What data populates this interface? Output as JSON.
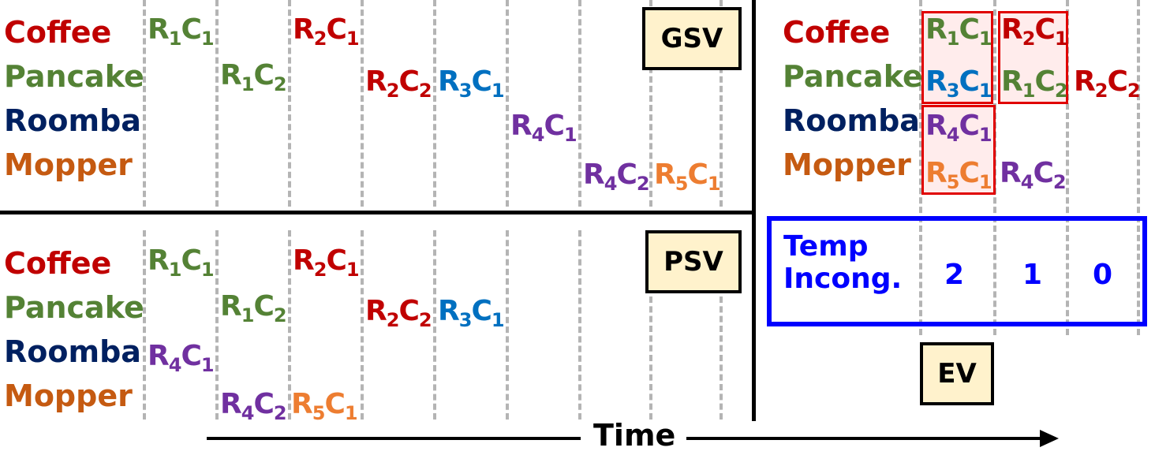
{
  "rows": {
    "coffee": "Coffee",
    "pancake": "Pancake",
    "roomba": "Roomba",
    "mopper": "Mopper"
  },
  "tags": {
    "gsv": "GSV",
    "psv": "PSV",
    "ev": "EV"
  },
  "tokens": {
    "r1c1": {
      "r": "R",
      "rs": "1",
      "c": "C",
      "cs": "1"
    },
    "r1c2": {
      "r": "R",
      "rs": "1",
      "c": "C",
      "cs": "2"
    },
    "r2c1": {
      "r": "R",
      "rs": "2",
      "c": "C",
      "cs": "1"
    },
    "r2c2": {
      "r": "R",
      "rs": "2",
      "c": "C",
      "cs": "2"
    },
    "r3c1": {
      "r": "R",
      "rs": "3",
      "c": "C",
      "cs": "1"
    },
    "r4c1": {
      "r": "R",
      "rs": "4",
      "c": "C",
      "cs": "1"
    },
    "r4c2": {
      "r": "R",
      "rs": "4",
      "c": "C",
      "cs": "2"
    },
    "r5c1": {
      "r": "R",
      "rs": "5",
      "c": "C",
      "cs": "1"
    }
  },
  "temp_incong": {
    "label_line1": "Temp",
    "label_line2": "Incong.",
    "values": [
      "2",
      "1",
      "0"
    ]
  },
  "time_label": "Time",
  "colors": {
    "coffee": "#c00000",
    "pancake": "#548235",
    "roomba": "#002060",
    "mopper": "#c55a11",
    "r1": "#548235",
    "r2": "#c00000",
    "r3": "#0070c0",
    "r4": "#7030a0",
    "r5": "#ed7d31",
    "tag_fill": "#fff2cc",
    "highlight_box": "#e00000",
    "incong_box": "#0000ff"
  }
}
